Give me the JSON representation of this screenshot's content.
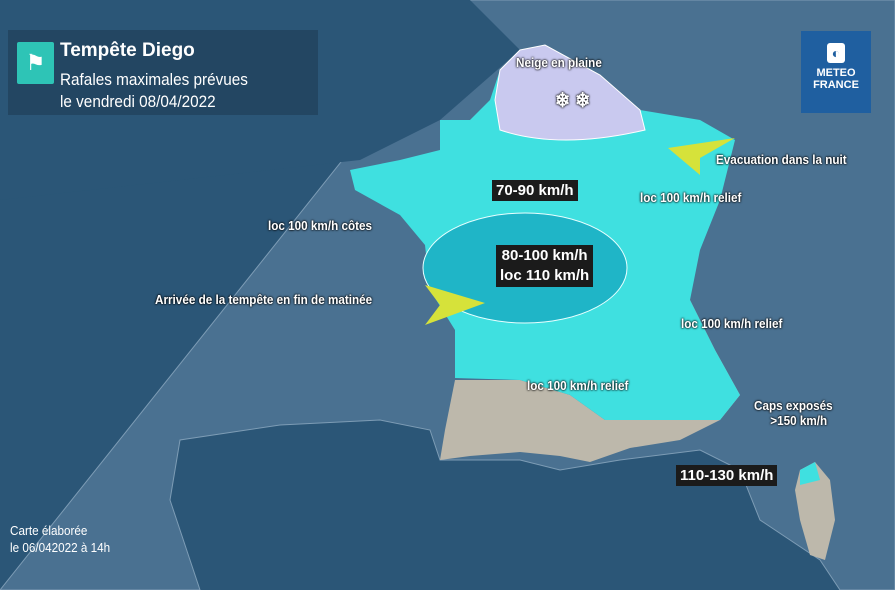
{
  "header": {
    "title": "Tempête Diego",
    "subtitle_1": "Rafales maximales prévues",
    "subtitle_2": "le vendredi 08/04/2022",
    "icon": "windsock-icon"
  },
  "logo": {
    "line1": "METEO",
    "line2": "FRANCE"
  },
  "zones": {
    "main": "70-90 km/h",
    "center_1": "80-100 km/h",
    "center_2": "loc 110 km/h",
    "corsica": "110-130 km/h"
  },
  "annotations": {
    "snow": "Neige en plaine",
    "evacuation": "Evacuation dans la nuit",
    "relief_ne": "loc 100 km/h relief",
    "coasts": "loc 100 km/h côtes",
    "arrival": "Arrivée de la tempête en fin de matinée",
    "relief_e": "loc 100 km/h relief",
    "relief_s": "loc 100 km/h relief",
    "caps_1": "Caps exposés",
    "caps_2": ">150 km/h"
  },
  "footer": {
    "line1": "Carte élaborée",
    "line2": "le 06/042022 à 14h"
  },
  "colors": {
    "sea": "#2b5677",
    "land_other": "#4a7191",
    "cyan_zone": "#3fe0e0",
    "teal_zone": "#1fb5c7",
    "snow_zone": "#c9c9ef",
    "grey_zone": "#bdb8ab",
    "arrow": "#d6e23a"
  }
}
